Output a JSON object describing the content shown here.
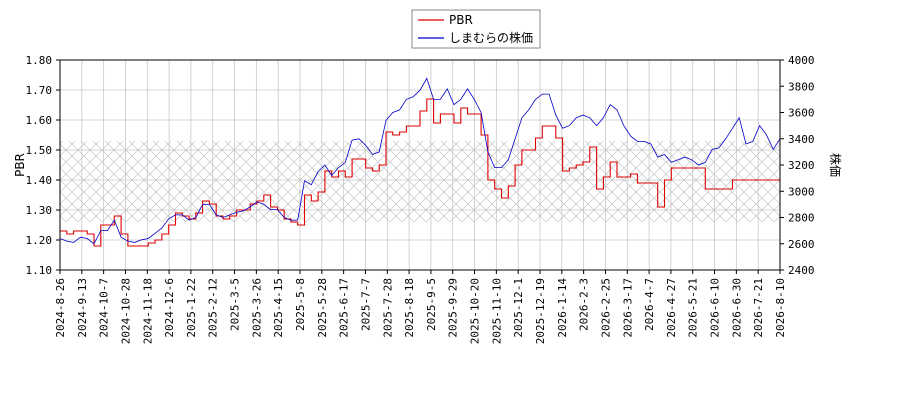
{
  "chart_data": {
    "type": "line",
    "title": "",
    "ylabel_left": "PBR",
    "ylabel_right": "株価",
    "ylim_left": [
      1.1,
      1.8
    ],
    "ylim_right": [
      2400,
      4000
    ],
    "y_ticks_left": [
      "1.10",
      "1.20",
      "1.30",
      "1.40",
      "1.50",
      "1.60",
      "1.70",
      "1.80"
    ],
    "y_ticks_right": [
      "2400",
      "2600",
      "2800",
      "3000",
      "3200",
      "3400",
      "3600",
      "3800",
      "4000"
    ],
    "x_ticks": [
      "2024-8-26",
      "2024-9-13",
      "2024-10-7",
      "2024-10-28",
      "2024-11-18",
      "2024-12-6",
      "2025-1-22",
      "2025-2-12",
      "2025-3-5",
      "2025-3-26",
      "2025-4-15",
      "2025-5-8",
      "2025-5-28",
      "2025-6-17",
      "2025-7-7",
      "2025-7-28",
      "2025-8-18",
      "2025-9-5",
      "2025-9-29",
      "2025-10-20",
      "2025-11-10",
      "2025-12-1",
      "2025-12-19",
      "2026-1-14",
      "2026-2-3",
      "2026-2-25",
      "2026-3-17",
      "2026-4-7",
      "2026-4-27",
      "2026-5-21",
      "2026-6-10",
      "2026-6-30",
      "2026-7-21",
      "2026-8-10"
    ],
    "legend": {
      "placement": "top-center",
      "entries": [
        "PBR",
        "しまむらの株価"
      ]
    },
    "hatched_band_left": [
      1.26,
      1.53
    ],
    "grid": true,
    "series": [
      {
        "name": "PBR",
        "axis": "left",
        "color": "#dd0000",
        "values": [
          1.23,
          1.22,
          1.23,
          1.23,
          1.22,
          1.18,
          1.25,
          1.25,
          1.28,
          1.22,
          1.18,
          1.18,
          1.18,
          1.19,
          1.2,
          1.22,
          1.25,
          1.29,
          1.28,
          1.27,
          1.29,
          1.33,
          1.32,
          1.28,
          1.27,
          1.28,
          1.3,
          1.3,
          1.32,
          1.33,
          1.35,
          1.31,
          1.3,
          1.27,
          1.26,
          1.25,
          1.35,
          1.33,
          1.36,
          1.43,
          1.41,
          1.43,
          1.41,
          1.47,
          1.47,
          1.44,
          1.43,
          1.45,
          1.56,
          1.55,
          1.56,
          1.58,
          1.58,
          1.63,
          1.67,
          1.59,
          1.62,
          1.62,
          1.59,
          1.64,
          1.62,
          1.62,
          1.55,
          1.4,
          1.37,
          1.34,
          1.38,
          1.45,
          1.5,
          1.5,
          1.54,
          1.58,
          1.58,
          1.54,
          1.43,
          1.44,
          1.45,
          1.46,
          1.51,
          1.37,
          1.41,
          1.46,
          1.41,
          1.41,
          1.42,
          1.39,
          1.39,
          1.39,
          1.31,
          1.4,
          1.44,
          1.44,
          1.44,
          1.44,
          1.44,
          1.37,
          1.37,
          1.37,
          1.37,
          1.4,
          1.4,
          1.4,
          1.4,
          1.4,
          1.4,
          1.4,
          1.4
        ]
      },
      {
        "name": "しまむらの株価",
        "axis": "right",
        "color": "#0000cc",
        "values": [
          2640,
          2620,
          2610,
          2650,
          2640,
          2600,
          2700,
          2700,
          2780,
          2650,
          2620,
          2610,
          2630,
          2640,
          2680,
          2720,
          2790,
          2820,
          2820,
          2780,
          2800,
          2900,
          2900,
          2820,
          2800,
          2820,
          2840,
          2850,
          2880,
          2920,
          2900,
          2860,
          2860,
          2800,
          2780,
          2780,
          3080,
          3050,
          3150,
          3200,
          3120,
          3180,
          3220,
          3390,
          3400,
          3350,
          3280,
          3300,
          3540,
          3600,
          3620,
          3700,
          3720,
          3770,
          3860,
          3700,
          3700,
          3780,
          3660,
          3700,
          3780,
          3700,
          3600,
          3300,
          3180,
          3180,
          3240,
          3400,
          3560,
          3620,
          3700,
          3740,
          3740,
          3580,
          3480,
          3500,
          3560,
          3580,
          3560,
          3500,
          3560,
          3660,
          3620,
          3500,
          3420,
          3380,
          3380,
          3360,
          3260,
          3280,
          3220,
          3240,
          3260,
          3240,
          3200,
          3220,
          3320,
          3330,
          3400,
          3480,
          3560,
          3360,
          3380,
          3500,
          3430,
          3320,
          3400
        ]
      }
    ]
  }
}
